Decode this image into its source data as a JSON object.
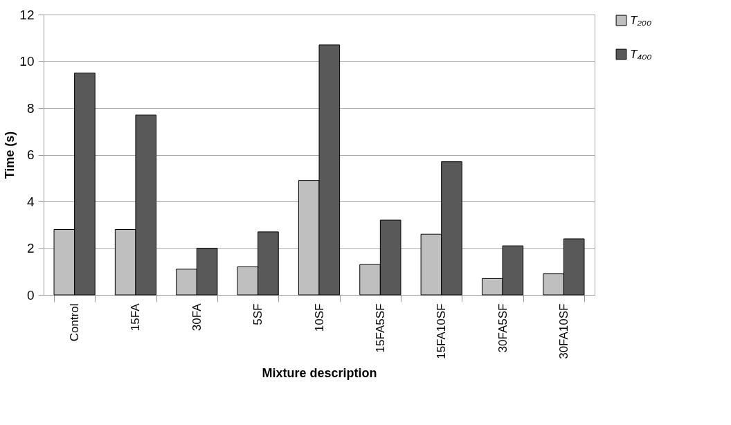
{
  "chart_data": {
    "type": "bar",
    "xlabel": "Mixture description",
    "ylabel": "Time (s)",
    "categories": [
      "Control",
      "15FA",
      "30FA",
      "5SF",
      "10SF",
      "15FA5SF",
      "15FA10SF",
      "30FA5SF",
      "30FA10SF"
    ],
    "series": [
      {
        "name": "T₂₀₀",
        "color": "#bfbfbf",
        "values": [
          2.8,
          2.8,
          1.1,
          1.2,
          4.9,
          1.3,
          2.6,
          0.7,
          0.9
        ]
      },
      {
        "name": "T₄₀₀",
        "color": "#595959",
        "values": [
          9.5,
          7.7,
          2.0,
          2.7,
          10.7,
          3.2,
          5.7,
          2.1,
          2.4
        ]
      }
    ],
    "ylim": [
      0,
      12
    ],
    "yticks": [
      0,
      2,
      4,
      6,
      8,
      10,
      12
    ],
    "grid": "y",
    "legend": "right"
  }
}
